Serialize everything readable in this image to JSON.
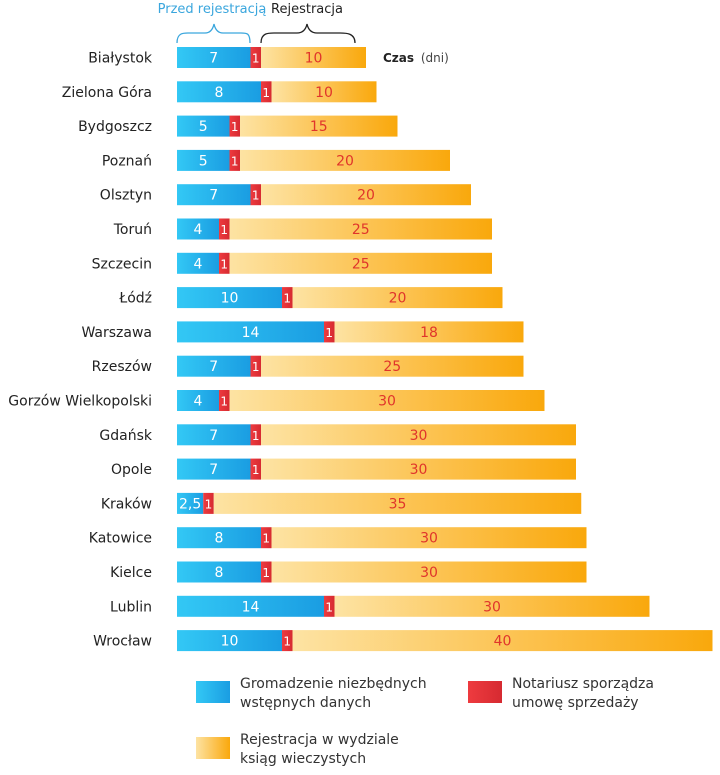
{
  "chart_data": {
    "type": "bar",
    "stacked": true,
    "orientation": "horizontal",
    "header_before": "Przed rejestracją",
    "header_after": "Rejestracja",
    "unit_label_bold": "Czas",
    "unit_label_rest": "(dni)",
    "categories": [
      "Białystok",
      "Zielona Góra",
      "Bydgoszcz",
      "Poznań",
      "Olsztyn",
      "Toruń",
      "Szczecin",
      "Łódź",
      "Warszawa",
      "Rzeszów",
      "Gorzów Wielkopolski",
      "Gdańsk",
      "Opole",
      "Kraków",
      "Katowice",
      "Kielce",
      "Lublin",
      "Wrocław"
    ],
    "series": [
      {
        "name": "Gromadzenie niezbędnych wstępnych danych",
        "color": "#1ab6ee",
        "values": [
          7,
          8,
          5,
          5,
          7,
          4,
          4,
          10,
          14,
          7,
          4,
          7,
          7,
          2.5,
          8,
          8,
          14,
          10
        ],
        "labels": [
          "7",
          "8",
          "5",
          "5",
          "7",
          "4",
          "4",
          "10",
          "14",
          "7",
          "4",
          "7",
          "7",
          "2,5",
          "8",
          "8",
          "14",
          "10"
        ]
      },
      {
        "name": "Notariusz sporządza umowę sprzedaży",
        "color": "#e8343a",
        "values": [
          1,
          1,
          1,
          1,
          1,
          1,
          1,
          1,
          1,
          1,
          1,
          1,
          1,
          1,
          1,
          1,
          1,
          1
        ],
        "labels": [
          "1",
          "1",
          "1",
          "1",
          "1",
          "1",
          "1",
          "1",
          "1",
          "1",
          "1",
          "1",
          "1",
          "1",
          "1",
          "1",
          "1",
          "1"
        ]
      },
      {
        "name": "Rejestracja w wydziale ksiąg wieczystych",
        "color": "#fbb416",
        "values": [
          10,
          10,
          15,
          20,
          20,
          25,
          25,
          20,
          18,
          25,
          30,
          30,
          30,
          35,
          30,
          30,
          30,
          40
        ],
        "labels": [
          "10",
          "10",
          "15",
          "20",
          "20",
          "25",
          "25",
          "20",
          "18",
          "25",
          "30",
          "30",
          "30",
          "35",
          "30",
          "30",
          "30",
          "40"
        ]
      }
    ],
    "legend": [
      {
        "line1": "Gromadzenie niezbędnych",
        "line2": "wstępnych danych",
        "color": "#1ab6ee"
      },
      {
        "line1": "Notariusz sporządza",
        "line2": "umowę sprzedaży",
        "color": "#e8343a"
      },
      {
        "line1": "Rejestracja w wydziale",
        "line2": "ksiąg wieczystych",
        "color": "#fbb416"
      }
    ],
    "xlabel": "",
    "ylabel": ""
  }
}
